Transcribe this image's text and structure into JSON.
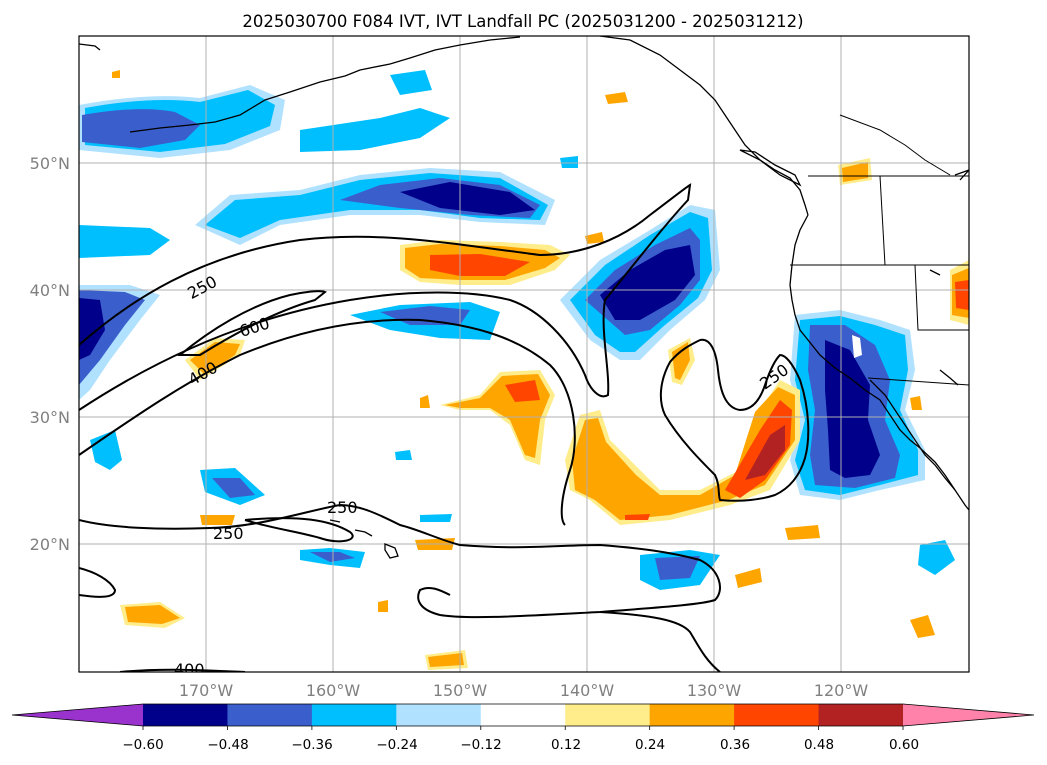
{
  "title": "2025030700 F084 IVT, IVT Landfall PC (2025031200 - 2025031212)",
  "lat_labels": [
    "50°N",
    "40°N",
    "30°N",
    "20°N"
  ],
  "lon_labels": [
    "170°W",
    "160°W",
    "150°W",
    "140°W",
    "130°W",
    "120°W"
  ],
  "colorbar": {
    "ticks": [
      "−0.60",
      "−0.48",
      "−0.36",
      "−0.24",
      "−0.12",
      "0.12",
      "0.24",
      "0.36",
      "0.48",
      "0.60"
    ],
    "colors": [
      "#9a32cd",
      "#00008b",
      "#3a5fcd",
      "#00bfff",
      "#b0e2ff",
      "#ffffff",
      "#ffec8b",
      "#ffa500",
      "#ff4500",
      "#b22222",
      "#ff82ab"
    ]
  },
  "contour_labels": [
    "250",
    "600",
    "400",
    "250",
    "250",
    "250",
    "400"
  ],
  "map": {
    "projection": "cylindrical",
    "lon_range": [
      -180,
      -110
    ],
    "lat_range": [
      10,
      60
    ],
    "gridlines": true
  }
}
